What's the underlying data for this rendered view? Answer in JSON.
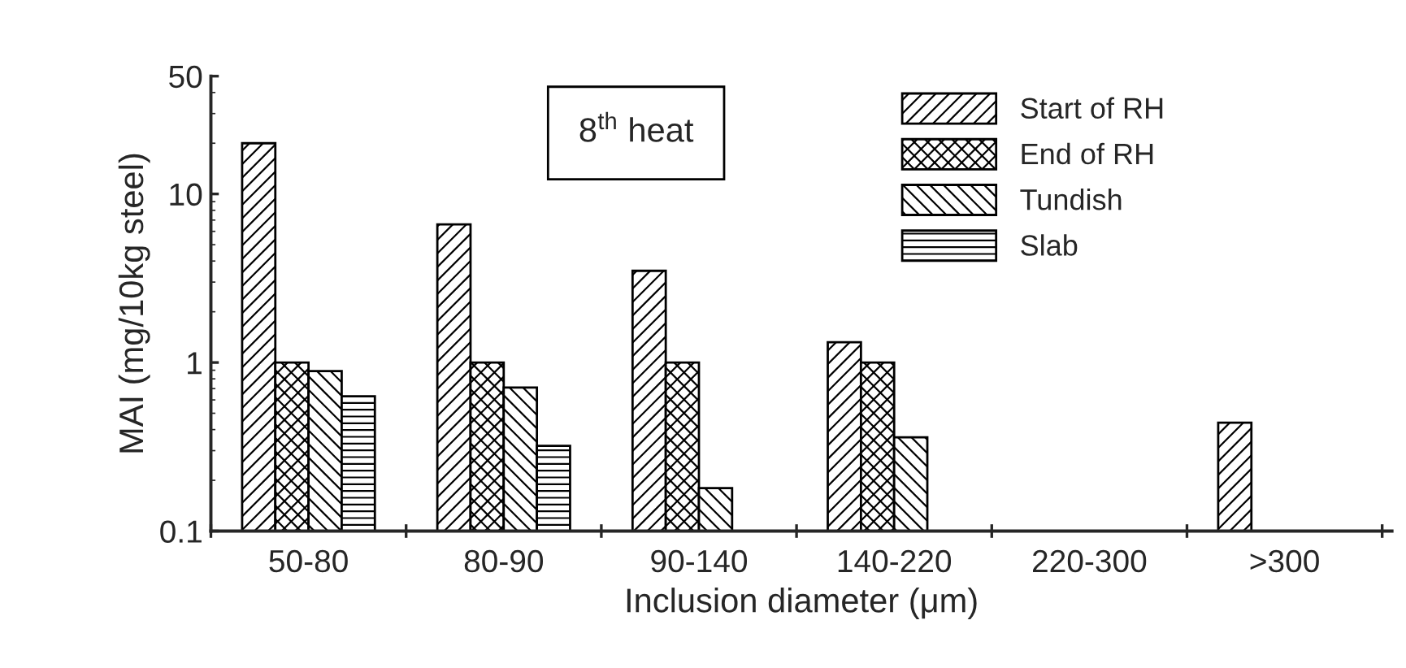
{
  "chart_data": {
    "type": "bar",
    "xlabel": "Inclusion diameter (μm)",
    "ylabel": "MAI (mg/10kg steel)",
    "categories": [
      "50-80",
      "80-90",
      "90-140",
      "140-220",
      "220-300",
      ">300"
    ],
    "series": [
      {
        "name": "Start of RH",
        "color": "#000000",
        "values": [
          20,
          6.6,
          3.5,
          1.32,
          null,
          0.44
        ]
      },
      {
        "name": "End of RH",
        "color": "#000000",
        "values": [
          1.0,
          1.0,
          1.0,
          1.0,
          null,
          null
        ]
      },
      {
        "name": "Tundish",
        "color": "#000000",
        "values": [
          0.89,
          0.71,
          0.18,
          0.36,
          null,
          null
        ]
      },
      {
        "name": "Slab",
        "color": "#000000",
        "values": [
          0.63,
          0.32,
          null,
          null,
          null,
          null
        ]
      }
    ],
    "log": "y",
    "ylim": [
      0.1,
      50
    ],
    "yticks": [
      0.1,
      1,
      10,
      50
    ],
    "grid": false,
    "legend": "top right",
    "annotations": [
      "8$^{th}$ heat"
    ]
  }
}
